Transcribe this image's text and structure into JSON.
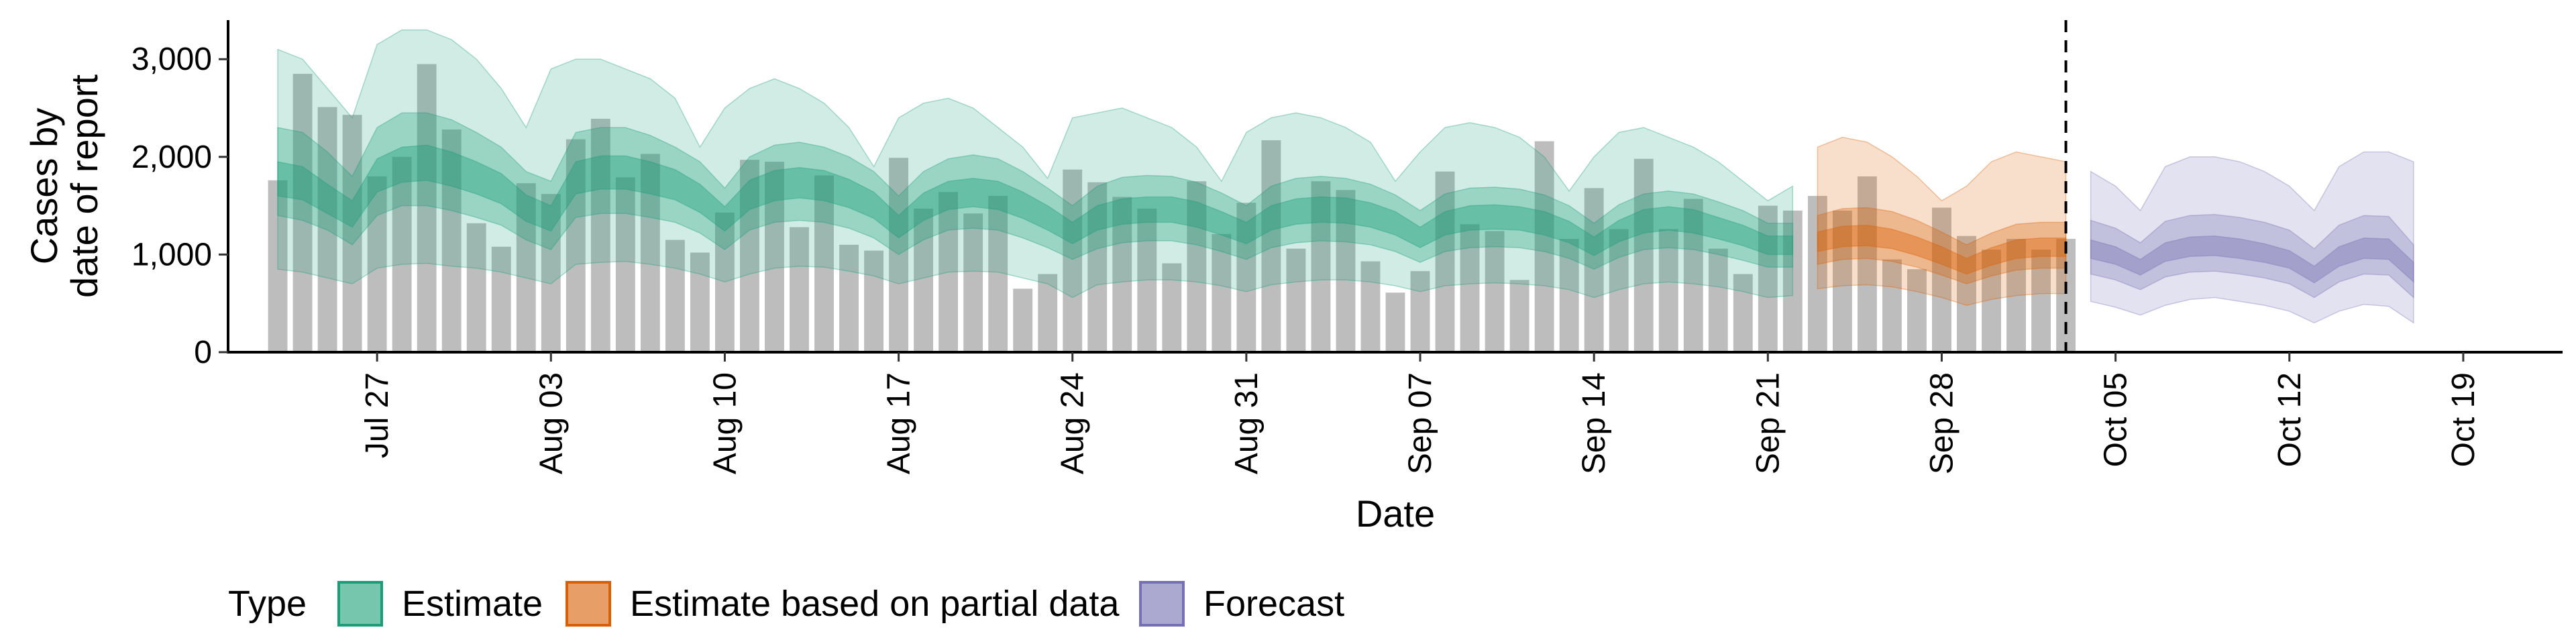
{
  "chart_data": {
    "type": "bar",
    "title": "",
    "xlabel": "Date",
    "ylabel": [
      "Cases by",
      "date of report"
    ],
    "ylim": [
      0,
      3400
    ],
    "y_ticks": [
      0,
      1000,
      2000,
      3000
    ],
    "y_tick_labels": [
      "0",
      "1,000",
      "2,000",
      "3,000"
    ],
    "x_range": [
      "2020-07-21",
      "2020-10-23"
    ],
    "x_ticks": [
      "2020-07-27",
      "2020-08-03",
      "2020-08-10",
      "2020-08-17",
      "2020-08-24",
      "2020-08-31",
      "2020-09-07",
      "2020-09-14",
      "2020-09-21",
      "2020-09-28",
      "2020-10-05",
      "2020-10-12",
      "2020-10-19"
    ],
    "x_tick_labels": [
      "Jul 27",
      "Aug 03",
      "Aug 10",
      "Aug 17",
      "Aug 24",
      "Aug 31",
      "Sep 07",
      "Sep 14",
      "Sep 21",
      "Sep 28",
      "Oct 05",
      "Oct 12",
      "Oct 19"
    ],
    "forecast_boundary": "2020-10-03",
    "grid": false,
    "legend": {
      "title": "Type",
      "position": "bottom",
      "entries": [
        {
          "label": "Estimate",
          "color": "#1b9e77"
        },
        {
          "label": "Estimate based on partial data",
          "color": "#d95f02"
        },
        {
          "label": "Forecast",
          "color": "#7570b3"
        }
      ]
    },
    "bar_color": "#bdbdbd",
    "reported_cases": {
      "dates": [
        "2020-07-23",
        "2020-07-24",
        "2020-07-25",
        "2020-07-26",
        "2020-07-27",
        "2020-07-28",
        "2020-07-29",
        "2020-07-30",
        "2020-07-31",
        "2020-08-01",
        "2020-08-02",
        "2020-08-03",
        "2020-08-04",
        "2020-08-05",
        "2020-08-06",
        "2020-08-07",
        "2020-08-08",
        "2020-08-09",
        "2020-08-10",
        "2020-08-11",
        "2020-08-12",
        "2020-08-13",
        "2020-08-14",
        "2020-08-15",
        "2020-08-16",
        "2020-08-17",
        "2020-08-18",
        "2020-08-19",
        "2020-08-20",
        "2020-08-21",
        "2020-08-22",
        "2020-08-23",
        "2020-08-24",
        "2020-08-25",
        "2020-08-26",
        "2020-08-27",
        "2020-08-28",
        "2020-08-29",
        "2020-08-30",
        "2020-08-31",
        "2020-09-01",
        "2020-09-02",
        "2020-09-03",
        "2020-09-04",
        "2020-09-05",
        "2020-09-06",
        "2020-09-07",
        "2020-09-08",
        "2020-09-09",
        "2020-09-10",
        "2020-09-11",
        "2020-09-12",
        "2020-09-13",
        "2020-09-14",
        "2020-09-15",
        "2020-09-16",
        "2020-09-17",
        "2020-09-18",
        "2020-09-19",
        "2020-09-20",
        "2020-09-21",
        "2020-09-22",
        "2020-09-23",
        "2020-09-24",
        "2020-09-25",
        "2020-09-26",
        "2020-09-27",
        "2020-09-28",
        "2020-09-29",
        "2020-09-30",
        "2020-10-01",
        "2020-10-02",
        "2020-10-03"
      ],
      "values": [
        1760,
        2850,
        2510,
        2430,
        1800,
        2000,
        2950,
        2280,
        1320,
        1080,
        1730,
        1620,
        2180,
        2390,
        1790,
        2030,
        1150,
        1020,
        1430,
        1970,
        1950,
        1280,
        1810,
        1100,
        1040,
        1990,
        1470,
        1640,
        1420,
        1600,
        650,
        800,
        1870,
        1740,
        1590,
        1470,
        910,
        1750,
        1210,
        1530,
        2170,
        1060,
        1750,
        1660,
        930,
        610,
        830,
        1850,
        1310,
        1240,
        740,
        2160,
        1160,
        1680,
        1260,
        1980,
        1260,
        1570,
        1060,
        800,
        1500,
        1450,
        1600,
        1450,
        1800,
        950,
        850,
        1480,
        1190,
        1050,
        1160,
        1050,
        1160
      ]
    },
    "estimate": {
      "dates": [
        "2020-07-23",
        "2020-07-24",
        "2020-07-25",
        "2020-07-26",
        "2020-07-27",
        "2020-07-28",
        "2020-07-29",
        "2020-07-30",
        "2020-07-31",
        "2020-08-01",
        "2020-08-02",
        "2020-08-03",
        "2020-08-04",
        "2020-08-05",
        "2020-08-06",
        "2020-08-07",
        "2020-08-08",
        "2020-08-09",
        "2020-08-10",
        "2020-08-11",
        "2020-08-12",
        "2020-08-13",
        "2020-08-14",
        "2020-08-15",
        "2020-08-16",
        "2020-08-17",
        "2020-08-18",
        "2020-08-19",
        "2020-08-20",
        "2020-08-21",
        "2020-08-22",
        "2020-08-23",
        "2020-08-24",
        "2020-08-25",
        "2020-08-26",
        "2020-08-27",
        "2020-08-28",
        "2020-08-29",
        "2020-08-30",
        "2020-08-31",
        "2020-09-01",
        "2020-09-02",
        "2020-09-03",
        "2020-09-04",
        "2020-09-05",
        "2020-09-06",
        "2020-09-07",
        "2020-09-08",
        "2020-09-09",
        "2020-09-10",
        "2020-09-11",
        "2020-09-12",
        "2020-09-13",
        "2020-09-14",
        "2020-09-15",
        "2020-09-16",
        "2020-09-17",
        "2020-09-18",
        "2020-09-19",
        "2020-09-20",
        "2020-09-21",
        "2020-09-22"
      ],
      "lower90": [
        850,
        820,
        760,
        700,
        860,
        900,
        910,
        880,
        860,
        820,
        760,
        700,
        900,
        920,
        930,
        900,
        860,
        800,
        720,
        800,
        860,
        880,
        870,
        830,
        780,
        700,
        760,
        820,
        830,
        820,
        760,
        700,
        560,
        690,
        720,
        740,
        740,
        720,
        680,
        620,
        690,
        720,
        740,
        740,
        720,
        680,
        620,
        680,
        700,
        710,
        700,
        680,
        640,
        560,
        640,
        700,
        720,
        700,
        670,
        620,
        560,
        580
      ],
      "upper90": [
        3100,
        3000,
        2700,
        2400,
        3150,
        3300,
        3300,
        3200,
        3000,
        2700,
        2300,
        2900,
        3000,
        3000,
        2900,
        2800,
        2600,
        2100,
        2500,
        2700,
        2800,
        2700,
        2550,
        2300,
        1900,
        2400,
        2550,
        2600,
        2500,
        2300,
        2100,
        1780,
        2400,
        2450,
        2500,
        2400,
        2300,
        2100,
        1750,
        2250,
        2400,
        2450,
        2400,
        2300,
        2150,
        1750,
        2050,
        2300,
        2350,
        2300,
        2200,
        2000,
        1650,
        2000,
        2250,
        2300,
        2200,
        2100,
        1950,
        1750,
        1550,
        1700
      ],
      "lower50": [
        1400,
        1350,
        1250,
        1100,
        1400,
        1500,
        1500,
        1450,
        1380,
        1300,
        1150,
        1050,
        1380,
        1420,
        1420,
        1380,
        1330,
        1220,
        1050,
        1250,
        1330,
        1350,
        1330,
        1270,
        1170,
        1000,
        1150,
        1250,
        1270,
        1250,
        1170,
        1070,
        950,
        1060,
        1120,
        1140,
        1140,
        1100,
        1030,
        950,
        1070,
        1120,
        1140,
        1130,
        1100,
        1030,
        920,
        1030,
        1070,
        1080,
        1070,
        1030,
        960,
        850,
        970,
        1050,
        1070,
        1050,
        1000,
        940,
        870,
        870
      ],
      "upper50": [
        2300,
        2250,
        2050,
        1800,
        2300,
        2450,
        2450,
        2380,
        2250,
        2100,
        1850,
        1750,
        2250,
        2300,
        2300,
        2220,
        2100,
        1950,
        1680,
        2000,
        2120,
        2150,
        2100,
        2000,
        1850,
        1600,
        1850,
        1980,
        2020,
        1980,
        1850,
        1680,
        1500,
        1700,
        1790,
        1810,
        1800,
        1740,
        1630,
        1500,
        1700,
        1780,
        1800,
        1780,
        1720,
        1610,
        1450,
        1620,
        1680,
        1690,
        1670,
        1610,
        1500,
        1320,
        1510,
        1620,
        1650,
        1620,
        1540,
        1450,
        1320,
        1320
      ],
      "lower20": [
        1600,
        1560,
        1420,
        1280,
        1640,
        1740,
        1760,
        1700,
        1620,
        1520,
        1340,
        1240,
        1620,
        1670,
        1670,
        1620,
        1560,
        1430,
        1240,
        1460,
        1550,
        1580,
        1550,
        1480,
        1370,
        1170,
        1350,
        1460,
        1490,
        1460,
        1370,
        1250,
        1110,
        1250,
        1310,
        1330,
        1330,
        1280,
        1200,
        1110,
        1250,
        1310,
        1330,
        1320,
        1280,
        1200,
        1070,
        1200,
        1250,
        1260,
        1250,
        1200,
        1120,
        990,
        1130,
        1220,
        1250,
        1220,
        1160,
        1090,
        1000,
        1000
      ],
      "upper20": [
        1950,
        1900,
        1720,
        1550,
        1980,
        2100,
        2120,
        2050,
        1950,
        1830,
        1610,
        1500,
        1950,
        2010,
        2010,
        1950,
        1870,
        1720,
        1490,
        1760,
        1860,
        1890,
        1860,
        1770,
        1640,
        1400,
        1630,
        1750,
        1780,
        1750,
        1640,
        1500,
        1330,
        1500,
        1570,
        1590,
        1590,
        1540,
        1440,
        1330,
        1500,
        1570,
        1590,
        1580,
        1530,
        1440,
        1280,
        1440,
        1500,
        1510,
        1490,
        1440,
        1340,
        1180,
        1350,
        1460,
        1490,
        1460,
        1380,
        1300,
        1190,
        1190
      ]
    },
    "estimate_partial": {
      "dates": [
        "2020-09-23",
        "2020-09-24",
        "2020-09-25",
        "2020-09-26",
        "2020-09-27",
        "2020-09-28",
        "2020-09-29",
        "2020-09-30",
        "2020-10-01",
        "2020-10-02",
        "2020-10-03"
      ],
      "lower90": [
        650,
        680,
        690,
        670,
        620,
        560,
        480,
        540,
        580,
        600,
        600
      ],
      "upper90": [
        2100,
        2200,
        2150,
        2000,
        1800,
        1550,
        1700,
        1950,
        2050,
        2000,
        1950
      ],
      "lower50": [
        900,
        950,
        960,
        930,
        870,
        790,
        700,
        780,
        840,
        860,
        860
      ],
      "upper50": [
        1400,
        1470,
        1480,
        1440,
        1350,
        1230,
        1100,
        1220,
        1310,
        1330,
        1330
      ],
      "lower20": [
        1030,
        1080,
        1090,
        1060,
        990,
        900,
        800,
        890,
        960,
        980,
        980
      ],
      "upper20": [
        1230,
        1290,
        1300,
        1260,
        1180,
        1080,
        960,
        1070,
        1150,
        1170,
        1170
      ]
    },
    "forecast": {
      "dates": [
        "2020-10-04",
        "2020-10-05",
        "2020-10-06",
        "2020-10-07",
        "2020-10-08",
        "2020-10-09",
        "2020-10-10",
        "2020-10-11",
        "2020-10-12",
        "2020-10-13",
        "2020-10-14",
        "2020-10-15",
        "2020-10-16",
        "2020-10-17"
      ],
      "lower90": [
        520,
        460,
        380,
        480,
        540,
        560,
        520,
        480,
        420,
        300,
        420,
        490,
        470,
        300
      ],
      "upper90": [
        1850,
        1700,
        1450,
        1900,
        2000,
        2000,
        1950,
        1850,
        1700,
        1450,
        1900,
        2050,
        2050,
        1950
      ],
      "lower50": [
        800,
        740,
        640,
        770,
        820,
        830,
        800,
        760,
        700,
        560,
        720,
        800,
        790,
        560
      ],
      "upper50": [
        1350,
        1270,
        1120,
        1340,
        1400,
        1410,
        1380,
        1330,
        1250,
        1060,
        1300,
        1400,
        1390,
        1100
      ],
      "lower20": [
        960,
        900,
        790,
        930,
        980,
        990,
        960,
        920,
        860,
        710,
        880,
        960,
        950,
        720
      ],
      "upper20": [
        1150,
        1080,
        950,
        1120,
        1180,
        1190,
        1160,
        1110,
        1040,
        880,
        1080,
        1170,
        1160,
        920
      ]
    }
  }
}
